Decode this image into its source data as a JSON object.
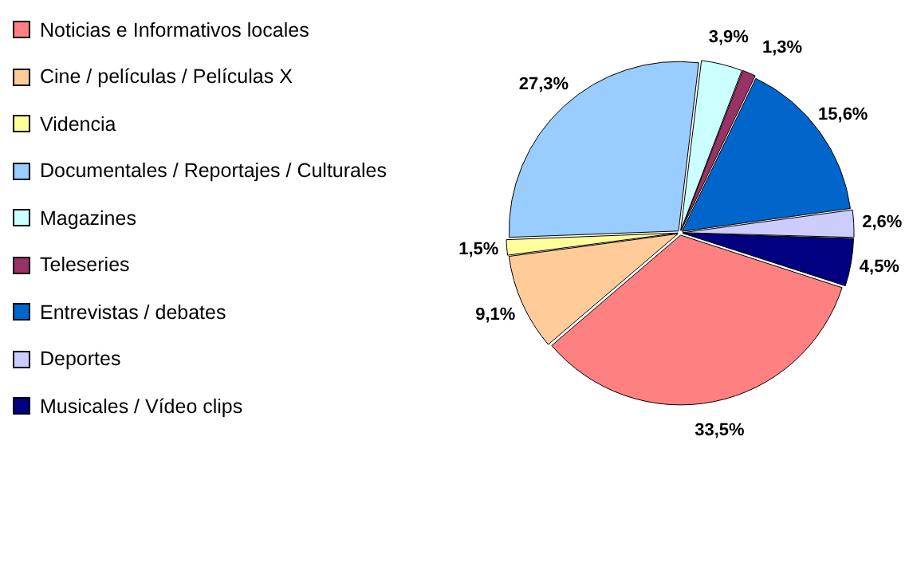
{
  "chart_data": {
    "type": "pie",
    "categories": [
      "Noticias e Informativos locales",
      "Cine / películas / Películas X",
      "Videncia",
      "Documentales / Reportajes / Culturales",
      "Magazines",
      "Teleseries",
      "Entrevistas / debates",
      "Deportes",
      "Musicales / Vídeo clips"
    ],
    "values": [
      33.5,
      9.1,
      1.5,
      27.3,
      3.9,
      1.3,
      15.6,
      2.6,
      4.5
    ],
    "colors": [
      "#ff8080",
      "#ffcc99",
      "#ffff99",
      "#99ccff",
      "#ccffff",
      "#993366",
      "#0066cc",
      "#ccccff",
      "#000080"
    ],
    "value_labels": [
      "33,5%",
      "9,1%",
      "1,5%",
      "27,3%",
      "3,9%",
      "1,3%",
      "15,6%",
      "2,6%",
      "4,5%"
    ],
    "legend": "left"
  }
}
